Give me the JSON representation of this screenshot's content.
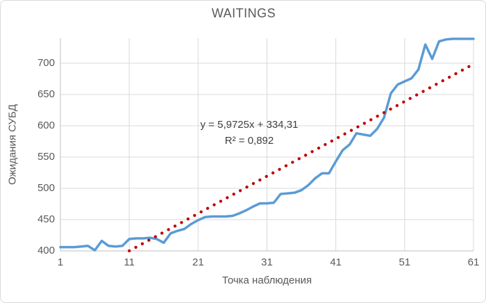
{
  "chart_data": {
    "type": "line",
    "title": "WAITINGS",
    "xlabel": "Точка наблюдения",
    "ylabel": "Ожидания СУБД",
    "x_start": 1,
    "x_end": 61,
    "series": [
      {
        "values": [
          406,
          406,
          406,
          407,
          408,
          401,
          416,
          408,
          407,
          408,
          419,
          420,
          420,
          421,
          419,
          413,
          428,
          432,
          435,
          443,
          449,
          454,
          455,
          455,
          455,
          456,
          460,
          465,
          471,
          476,
          476,
          477,
          491,
          492,
          493,
          497,
          505,
          516,
          524,
          524,
          543,
          561,
          570,
          588,
          586,
          584,
          595,
          613,
          652,
          666,
          671,
          676,
          690,
          730,
          707,
          735,
          738,
          739,
          739,
          739,
          739
        ],
        "color": "#5B9BD5"
      }
    ],
    "trendline": {
      "type": "linear",
      "slope": 5.9725,
      "intercept": 334.31,
      "equation": "y = 5,9725x + 334,31",
      "r2_label": "R² = 0,892",
      "x_start": 11,
      "x_end": 61,
      "color": "#C00000"
    },
    "xticks": [
      1,
      11,
      21,
      31,
      41,
      51,
      61
    ],
    "yticks": [
      400,
      450,
      500,
      550,
      600,
      650,
      700
    ],
    "xlim": [
      1,
      61
    ],
    "ylim": [
      400,
      740
    ],
    "grid": true,
    "legend": "none",
    "gridline_color": "#D9D9D9",
    "axis_color": "#BFBFBF",
    "tick_text_color": "#595959",
    "annotation_color": "#404040"
  }
}
